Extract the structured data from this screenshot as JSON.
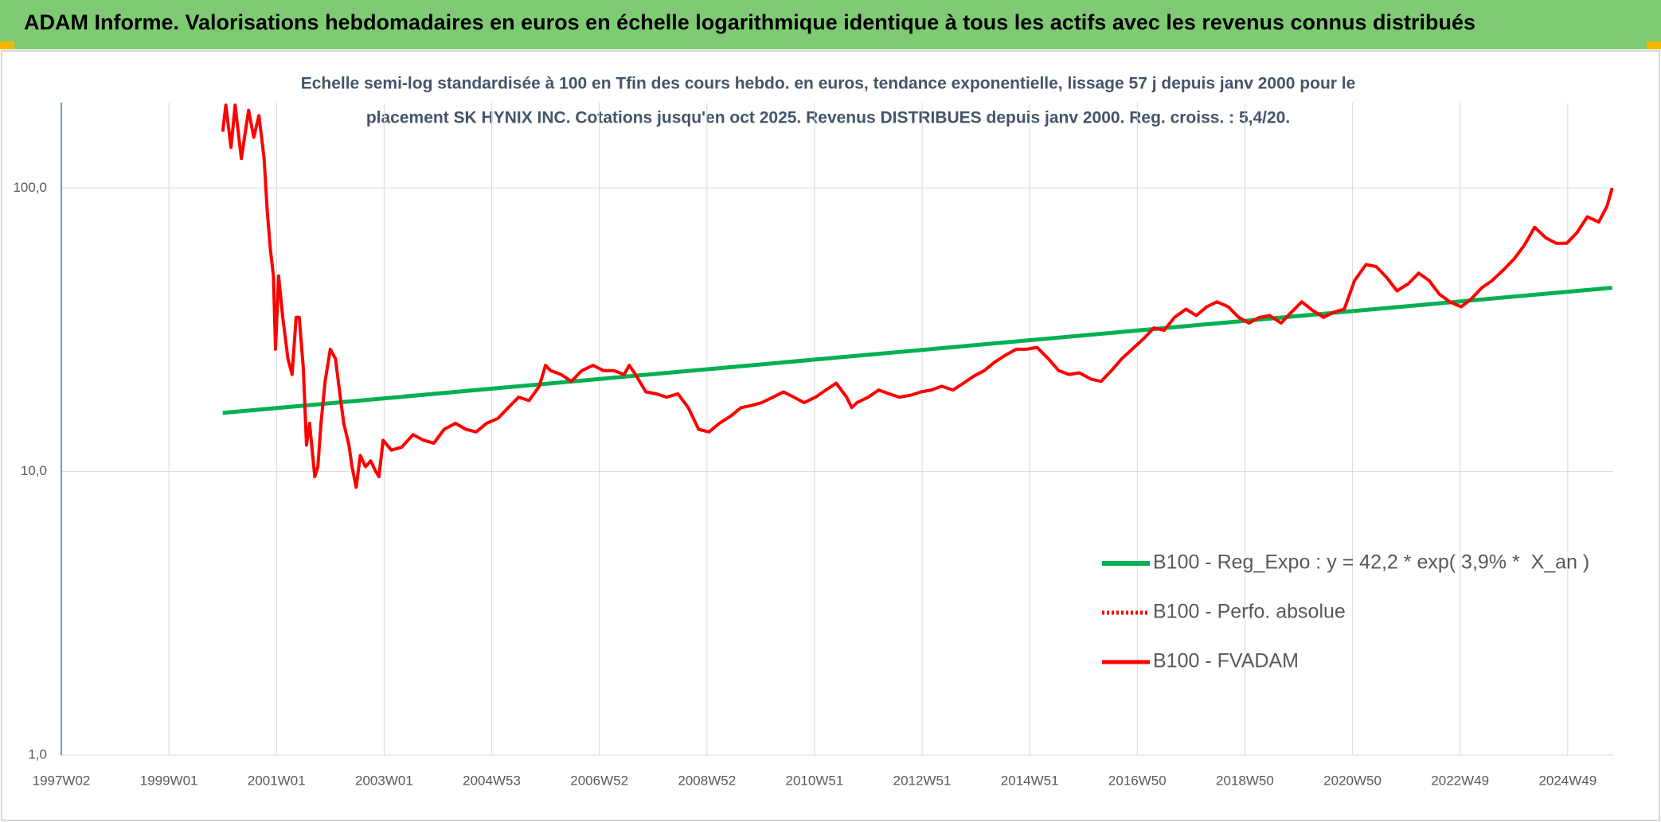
{
  "chart_data": {
    "type": "line",
    "title": "ADAM Informe. Valorisations hebdomadaires en euros en échelle logarithmique identique à tous les actifs avec les revenus connus distribués",
    "subtitle": [
      "Echelle semi-log standardisée à 100 en Tfin des cours hebdo. en euros, tendance exponentielle, lissage 57 j depuis janv 2000 pour le",
      "placement SK HYNIX INC. Cotations jusqu'en oct 2025. Revenus DISTRIBUES depuis janv 2000. Reg. croiss. : 5,4/20."
    ],
    "xlim": [
      0,
      1500
    ],
    "xticks": [
      {
        "value": 0,
        "label": "1997W02"
      },
      {
        "value": 104,
        "label": "1999W01"
      },
      {
        "value": 208,
        "label": "2001W01"
      },
      {
        "value": 312,
        "label": "2003W01"
      },
      {
        "value": 416,
        "label": "2004W53"
      },
      {
        "value": 520,
        "label": "2006W52"
      },
      {
        "value": 624,
        "label": "2008W52"
      },
      {
        "value": 728,
        "label": "2010W51"
      },
      {
        "value": 832,
        "label": "2012W51"
      },
      {
        "value": 936,
        "label": "2014W51"
      },
      {
        "value": 1040,
        "label": "2016W50"
      },
      {
        "value": 1144,
        "label": "2018W50"
      },
      {
        "value": 1248,
        "label": "2020W50"
      },
      {
        "value": 1352,
        "label": "2022W49"
      },
      {
        "value": 1456,
        "label": "2024W49"
      }
    ],
    "ylim": [
      1,
      200
    ],
    "yscale": "log",
    "yticks": [
      {
        "value": 1,
        "label": "1,0"
      },
      {
        "value": 10,
        "label": "10,0"
      },
      {
        "value": 100,
        "label": "100,0"
      }
    ],
    "grid": true,
    "legend": "right",
    "series": [
      {
        "name": "B100 - Reg_Expo : y = 42,2 * exp( 3,9% *  X_an )",
        "color": "#00b050",
        "width": 5,
        "x": [
          156,
          1499
        ],
        "values": [
          16.1,
          44.5
        ]
      },
      {
        "name": "B100 - Perfo. absolue",
        "color": "#ff0000",
        "dash": "dotted",
        "width": 4
      },
      {
        "name": "B100 - FVADAM",
        "color": "#ff0000",
        "width": 4,
        "x": [
          156,
          159,
          164,
          168,
          174,
          181,
          186,
          191,
          196,
          199,
          202,
          205,
          207,
          210,
          214,
          219,
          223,
          227,
          230,
          234,
          237,
          240,
          245,
          248,
          251,
          255,
          260,
          265,
          269,
          273,
          278,
          281,
          285,
          289,
          294,
          299,
          304,
          307,
          311,
          319,
          329,
          340,
          350,
          360,
          370,
          381,
          391,
          401,
          411,
          422,
          432,
          442,
          452,
          462,
          468,
          473,
          483,
          493,
          503,
          514,
          524,
          534,
          544,
          549,
          555,
          565,
          575,
          585,
          596,
          606,
          616,
          626,
          636,
          647,
          657,
          667,
          677,
          688,
          698,
          708,
          718,
          729,
          739,
          749,
          759,
          764,
          769,
          780,
          790,
          800,
          810,
          821,
          831,
          841,
          851,
          862,
          872,
          882,
          892,
          902,
          913,
          923,
          933,
          943,
          954,
          964,
          974,
          984,
          995,
          1005,
          1015,
          1025,
          1035,
          1046,
          1056,
          1066,
          1076,
          1087,
          1097,
          1107,
          1117,
          1128,
          1138,
          1148,
          1158,
          1168,
          1179,
          1189,
          1199,
          1209,
          1220,
          1230,
          1240,
          1250,
          1261,
          1271,
          1281,
          1291,
          1302,
          1312,
          1322,
          1332,
          1342,
          1353,
          1363,
          1373,
          1383,
          1394,
          1404,
          1414,
          1424,
          1435,
          1445,
          1455,
          1465,
          1475,
          1486,
          1494,
          1499
        ],
        "values": [
          158,
          196,
          139,
          196,
          127,
          188,
          151,
          180,
          127,
          83,
          61,
          49,
          27,
          49,
          35,
          25,
          22,
          35,
          35,
          23,
          12.4,
          14.8,
          9.6,
          10.4,
          14.8,
          20.8,
          27,
          25,
          19.1,
          14.8,
          12.4,
          10.4,
          8.8,
          11.4,
          10.4,
          10.9,
          10,
          9.6,
          12.9,
          11.9,
          12.2,
          13.5,
          12.9,
          12.6,
          14.1,
          14.8,
          14.1,
          13.8,
          14.8,
          15.4,
          16.8,
          18.3,
          17.8,
          20,
          23.7,
          22.7,
          22,
          20.8,
          22.7,
          23.7,
          22.7,
          22.7,
          22,
          23.7,
          22,
          19.1,
          18.8,
          18.3,
          18.8,
          16.8,
          14.1,
          13.8,
          14.8,
          15.7,
          16.8,
          17.1,
          17.5,
          18.3,
          19.1,
          18.3,
          17.5,
          18.3,
          19.4,
          20.5,
          18.3,
          16.8,
          17.5,
          18.3,
          19.4,
          18.8,
          18.3,
          18.6,
          19.1,
          19.4,
          20,
          19.4,
          20.5,
          21.7,
          22.7,
          24.3,
          25.8,
          27,
          27,
          27.4,
          25,
          22.7,
          22,
          22.3,
          21.2,
          20.8,
          22.7,
          25,
          27,
          29.4,
          32.1,
          31.5,
          35,
          37.4,
          35.5,
          38.1,
          39.7,
          38.1,
          35,
          33.4,
          35,
          35.5,
          33.4,
          36.5,
          39.7,
          37.1,
          35,
          36.5,
          37.4,
          47.2,
          53.7,
          52.8,
          48.4,
          43.4,
          46,
          50.1,
          47.2,
          42.2,
          39.7,
          38.1,
          40.7,
          44.5,
          47.2,
          51.5,
          56.1,
          62.8,
          72.7,
          66.7,
          63.8,
          63.8,
          69.6,
          79.2,
          75.9,
          86.3,
          100
        ]
      }
    ]
  }
}
